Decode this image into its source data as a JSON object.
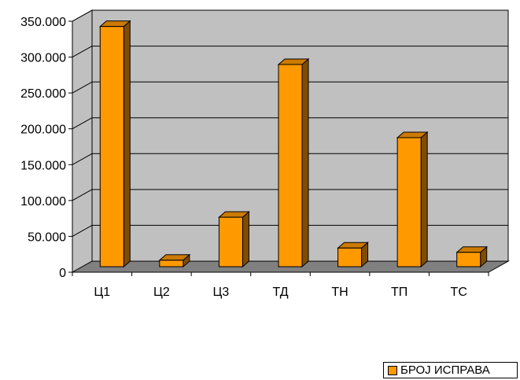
{
  "chart_data": {
    "type": "bar",
    "categories": [
      "Ц1",
      "Ц2",
      "Ц3",
      "ТД",
      "ТН",
      "ТП",
      "ТС"
    ],
    "series": [
      {
        "name": "БРОЈ ИСПРАВА",
        "values": [
          335000,
          9000,
          69000,
          282000,
          26000,
          180000,
          20000
        ]
      }
    ],
    "ylim": [
      0,
      350000
    ],
    "yticks": [
      "0",
      "50.000",
      "100.000",
      "150.000",
      "200.000",
      "250.000",
      "300.000",
      "350.000"
    ],
    "grid": true,
    "legend_position": "bottom-right",
    "colors": {
      "bar_front": "#FF9900",
      "bar_side": "#7F4C00",
      "bar_top": "#CC7A00",
      "plot_wall": "#C0C0C0",
      "floor": "#808080",
      "gridline": "#000000"
    }
  }
}
